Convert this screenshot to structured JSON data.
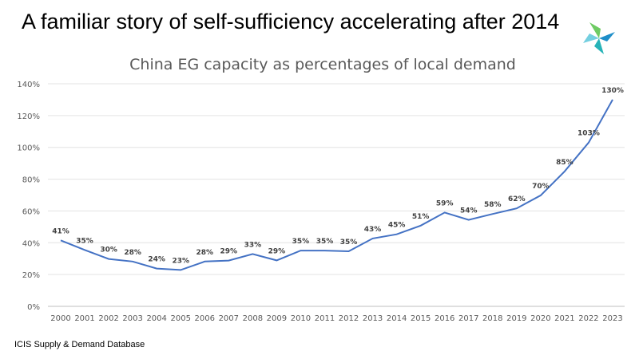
{
  "slide": {
    "title": "A familiar story of self-sufficiency accelerating after 2014",
    "source": "ICIS Supply  & Demand Database"
  },
  "logo": {
    "icon": "icis-logo-icon",
    "colors": [
      "#27b3b8",
      "#6ecb63",
      "#1f8fc9",
      "#74cfe0"
    ]
  },
  "chart_data": {
    "type": "line",
    "title": "China EG capacity as percentages of local demand",
    "xlabel": "",
    "ylabel": "",
    "x": [
      "2000",
      "2001",
      "2002",
      "2003",
      "2004",
      "2005",
      "2006",
      "2007",
      "2008",
      "2009",
      "2010",
      "2011",
      "2012",
      "2013",
      "2014",
      "2015",
      "2016",
      "2017",
      "2018",
      "2019",
      "2020",
      "2021",
      "2022",
      "2023"
    ],
    "values": [
      41.5,
      35.5,
      29.8,
      28.2,
      23.8,
      22.9,
      28.2,
      28.8,
      32.9,
      28.9,
      35.1,
      35.1,
      34.6,
      42.7,
      45.3,
      50.8,
      59.0,
      54.4,
      58.1,
      61.6,
      69.8,
      84.9,
      103.0,
      130.0
    ],
    "data_labels": [
      "41%",
      "35%",
      "30%",
      "28%",
      "24%",
      "23%",
      "28%",
      "29%",
      "33%",
      "29%",
      "35%",
      "35%",
      "35%",
      "43%",
      "45%",
      "51%",
      "59%",
      "54%",
      "58%",
      "62%",
      "70%",
      "85%",
      "103%",
      "130%"
    ],
    "y_ticks": [
      "0%",
      "20%",
      "40%",
      "60%",
      "80%",
      "100%",
      "120%",
      "140%"
    ],
    "ylim": [
      0,
      140
    ],
    "grid": true,
    "series_color": "#4472c4"
  }
}
